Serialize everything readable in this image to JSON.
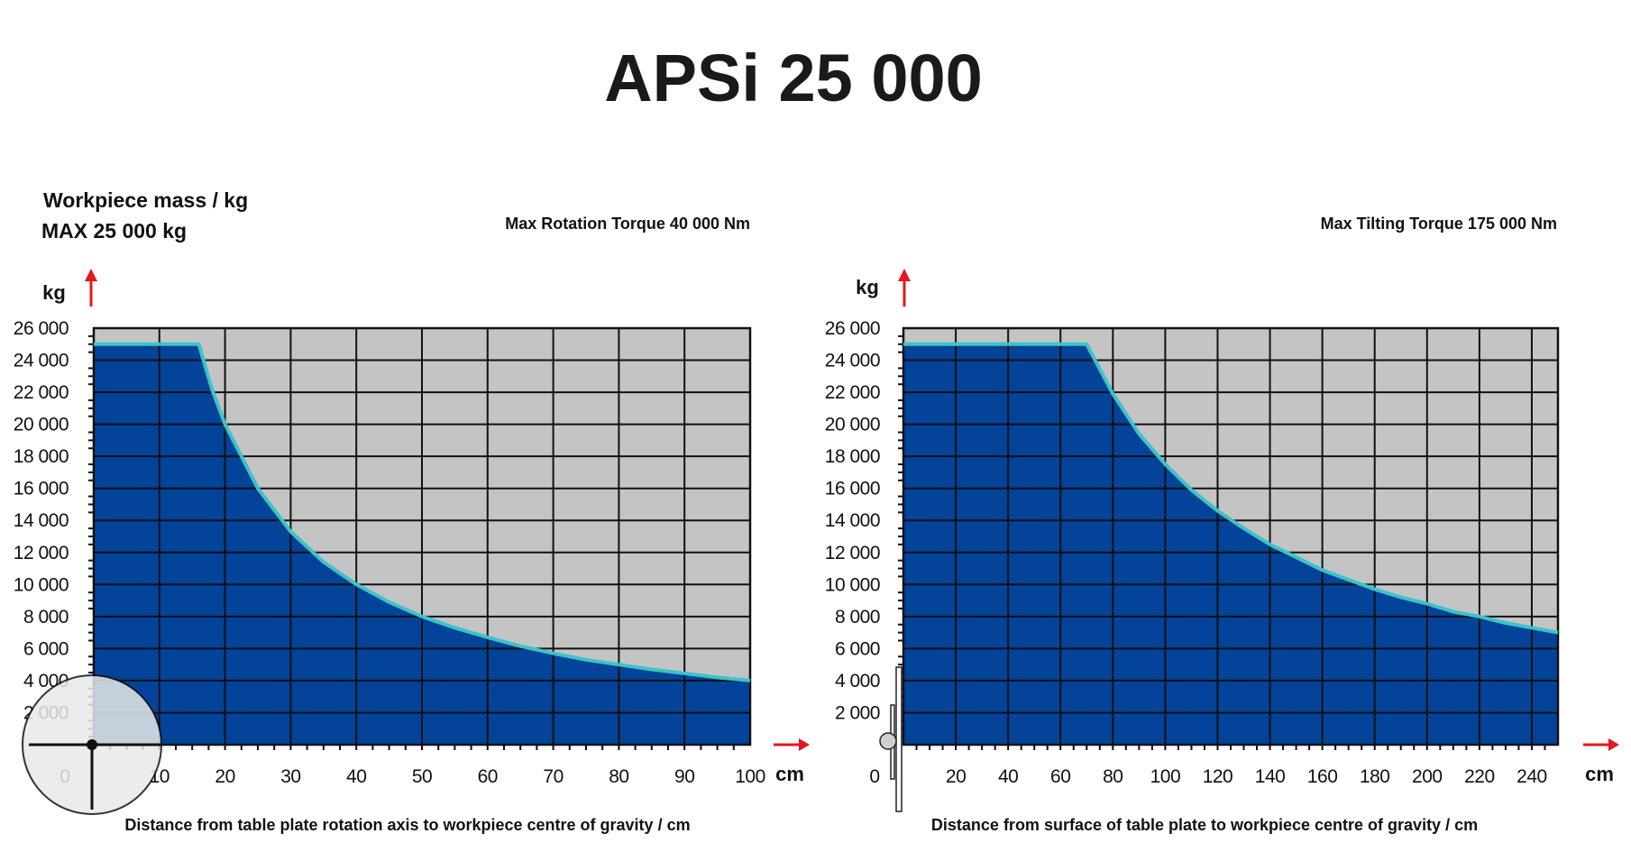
{
  "page": {
    "title": "APSi 25 000",
    "mass_header": "Workpiece mass / kg",
    "max_mass": "MAX 25 000 kg"
  },
  "colors": {
    "background_region": "#c4c4c4",
    "capacity_fill": "#03439a",
    "curve": "#3dc3c7",
    "grid": "#111111",
    "arrow": "#e4171c"
  },
  "chart_data": [
    {
      "type": "area",
      "annotation": "Max Rotation Torque 40 000 Nm",
      "ylabel": "kg",
      "xunit": "cm",
      "xlabel": "Distance from table plate rotation axis to workpiece centre of gravity / cm",
      "xlim": [
        0,
        100
      ],
      "ylim": [
        0,
        26000
      ],
      "xticks": [
        0,
        10,
        20,
        30,
        40,
        50,
        60,
        70,
        80,
        90,
        100
      ],
      "xtick_labels": [
        "0",
        "10",
        "20",
        "30",
        "40",
        "50",
        "60",
        "70",
        "80",
        "90",
        "100"
      ],
      "yticks": [
        2000,
        4000,
        6000,
        8000,
        10000,
        12000,
        14000,
        16000,
        18000,
        20000,
        22000,
        24000,
        26000
      ],
      "ytick_labels": [
        "2 000",
        "4 000",
        "6 000",
        "8 000",
        "10 000",
        "12 000",
        "14 000",
        "16 000",
        "18 000",
        "20 000",
        "22 000",
        "24 000",
        "26 000"
      ],
      "x": [
        0,
        16,
        18,
        20,
        25,
        30,
        35,
        40,
        45,
        50,
        55,
        60,
        65,
        70,
        75,
        80,
        85,
        90,
        95,
        100
      ],
      "y": [
        25000,
        25000,
        22200,
        20000,
        16000,
        13300,
        11400,
        10000,
        8900,
        8000,
        7300,
        6700,
        6150,
        5700,
        5300,
        5000,
        4700,
        4450,
        4200,
        4000
      ],
      "grid": true
    },
    {
      "type": "area",
      "annotation": "Max Tilting Torque 175 000 Nm",
      "ylabel": "kg",
      "xunit": "cm",
      "xlabel": "Distance from surface of table plate to workpiece centre of gravity / cm",
      "xlim": [
        0,
        250
      ],
      "ylim": [
        0,
        26000
      ],
      "xticks": [
        0,
        20,
        40,
        60,
        80,
        100,
        120,
        140,
        160,
        180,
        200,
        220,
        240
      ],
      "xtick_labels": [
        "0",
        "20",
        "40",
        "60",
        "80",
        "100",
        "120",
        "140",
        "160",
        "180",
        "200",
        "220",
        "240"
      ],
      "yticks": [
        2000,
        4000,
        6000,
        8000,
        10000,
        12000,
        14000,
        16000,
        18000,
        20000,
        22000,
        24000,
        26000
      ],
      "ytick_labels": [
        "2 000",
        "4 000",
        "6 000",
        "8 000",
        "10 000",
        "12 000",
        "14 000",
        "16 000",
        "18 000",
        "20 000",
        "22 000",
        "24 000",
        "26 000"
      ],
      "x": [
        0,
        70,
        80,
        90,
        100,
        110,
        120,
        130,
        140,
        150,
        160,
        170,
        180,
        190,
        200,
        210,
        220,
        230,
        240,
        250
      ],
      "y": [
        25000,
        25000,
        21900,
        19400,
        17500,
        15900,
        14600,
        13500,
        12500,
        11700,
        10900,
        10300,
        9700,
        9200,
        8800,
        8300,
        8000,
        7600,
        7300,
        7000
      ],
      "grid": true
    }
  ]
}
